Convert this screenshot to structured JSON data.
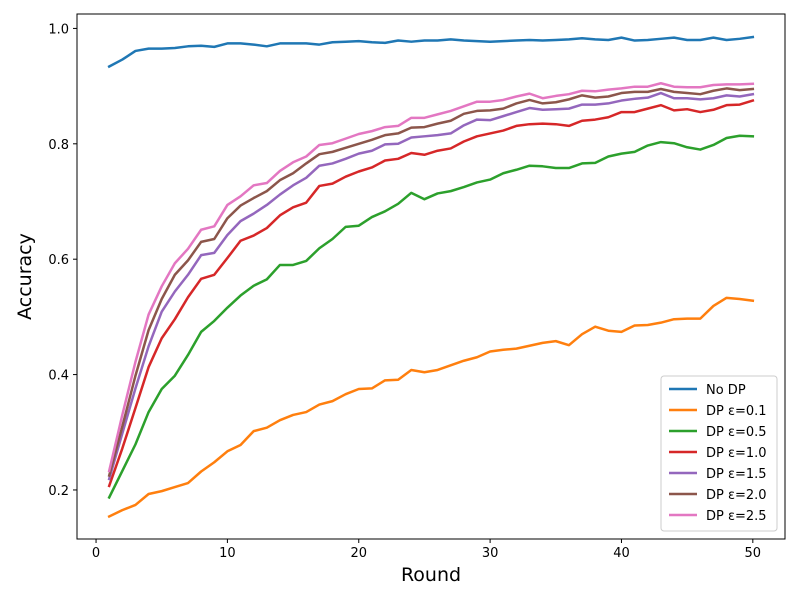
{
  "chart_data": {
    "type": "line",
    "title": "",
    "xlabel": "Round",
    "ylabel": "Accuracy",
    "xlim": [
      -1.45,
      52.45
    ],
    "ylim": [
      0.115,
      1.025
    ],
    "xticks": [
      0,
      10,
      20,
      30,
      40,
      50
    ],
    "yticks": [
      0.2,
      0.4,
      0.6,
      0.8,
      1.0
    ],
    "xtick_labels": [
      "0",
      "10",
      "20",
      "30",
      "40",
      "50"
    ],
    "ytick_labels": [
      "0.2",
      "0.4",
      "0.6",
      "0.8",
      "1.0"
    ],
    "grid": false,
    "legend": "bottom-right",
    "x": [
      1,
      2,
      3,
      4,
      5,
      6,
      7,
      8,
      9,
      10,
      11,
      12,
      13,
      14,
      15,
      16,
      17,
      18,
      19,
      20,
      21,
      22,
      23,
      24,
      25,
      26,
      27,
      28,
      29,
      30,
      31,
      32,
      33,
      34,
      35,
      36,
      37,
      38,
      39,
      40,
      41,
      42,
      43,
      44,
      45,
      46,
      47,
      48,
      49,
      50
    ],
    "series": [
      {
        "name": "No DP",
        "color": "#1f77b4",
        "values": [
          0.934,
          0.946,
          0.961,
          0.965,
          0.965,
          0.966,
          0.969,
          0.97,
          0.968,
          0.974,
          0.974,
          0.972,
          0.969,
          0.974,
          0.974,
          0.974,
          0.972,
          0.976,
          0.977,
          0.978,
          0.976,
          0.975,
          0.979,
          0.977,
          0.979,
          0.979,
          0.981,
          0.979,
          0.978,
          0.977,
          0.978,
          0.979,
          0.98,
          0.979,
          0.98,
          0.981,
          0.983,
          0.981,
          0.98,
          0.984,
          0.979,
          0.98,
          0.982,
          0.984,
          0.98,
          0.98,
          0.984,
          0.98,
          0.982,
          0.985
        ]
      },
      {
        "name": "DP ε=0.1",
        "color": "#ff7f0e",
        "values": [
          0.154,
          0.165,
          0.174,
          0.193,
          0.198,
          0.205,
          0.212,
          0.232,
          0.248,
          0.267,
          0.278,
          0.302,
          0.308,
          0.321,
          0.33,
          0.335,
          0.348,
          0.354,
          0.366,
          0.375,
          0.376,
          0.39,
          0.391,
          0.408,
          0.404,
          0.408,
          0.416,
          0.424,
          0.43,
          0.44,
          0.443,
          0.445,
          0.45,
          0.455,
          0.458,
          0.451,
          0.47,
          0.483,
          0.476,
          0.474,
          0.485,
          0.486,
          0.49,
          0.496,
          0.497,
          0.497,
          0.519,
          0.533,
          0.531,
          0.528
        ]
      },
      {
        "name": "DP ε=0.5",
        "color": "#2ca02c",
        "values": [
          0.187,
          0.233,
          0.279,
          0.335,
          0.375,
          0.398,
          0.434,
          0.474,
          0.493,
          0.516,
          0.537,
          0.554,
          0.565,
          0.59,
          0.59,
          0.597,
          0.619,
          0.635,
          0.656,
          0.658,
          0.673,
          0.683,
          0.696,
          0.715,
          0.704,
          0.714,
          0.718,
          0.725,
          0.733,
          0.738,
          0.749,
          0.755,
          0.762,
          0.761,
          0.758,
          0.758,
          0.766,
          0.767,
          0.778,
          0.783,
          0.786,
          0.797,
          0.803,
          0.801,
          0.794,
          0.79,
          0.798,
          0.81,
          0.814,
          0.813
        ]
      },
      {
        "name": "DP ε=1.0",
        "color": "#d62728",
        "values": [
          0.207,
          0.272,
          0.342,
          0.413,
          0.463,
          0.496,
          0.534,
          0.566,
          0.573,
          0.602,
          0.632,
          0.641,
          0.654,
          0.676,
          0.69,
          0.698,
          0.727,
          0.731,
          0.743,
          0.752,
          0.759,
          0.771,
          0.774,
          0.784,
          0.781,
          0.788,
          0.792,
          0.804,
          0.813,
          0.818,
          0.823,
          0.831,
          0.834,
          0.835,
          0.834,
          0.831,
          0.84,
          0.842,
          0.846,
          0.855,
          0.855,
          0.861,
          0.867,
          0.858,
          0.86,
          0.855,
          0.859,
          0.867,
          0.868,
          0.875
        ]
      },
      {
        "name": "DP ε=1.5",
        "color": "#9467bd",
        "values": [
          0.219,
          0.298,
          0.376,
          0.449,
          0.509,
          0.544,
          0.573,
          0.607,
          0.611,
          0.642,
          0.666,
          0.679,
          0.694,
          0.712,
          0.728,
          0.741,
          0.762,
          0.766,
          0.774,
          0.783,
          0.788,
          0.799,
          0.8,
          0.811,
          0.813,
          0.815,
          0.818,
          0.832,
          0.842,
          0.841,
          0.848,
          0.855,
          0.862,
          0.859,
          0.86,
          0.861,
          0.868,
          0.868,
          0.87,
          0.875,
          0.878,
          0.88,
          0.888,
          0.879,
          0.879,
          0.877,
          0.879,
          0.884,
          0.882,
          0.886
        ]
      },
      {
        "name": "DP ε=2.0",
        "color": "#8c564b",
        "values": [
          0.225,
          0.31,
          0.398,
          0.477,
          0.531,
          0.573,
          0.598,
          0.63,
          0.635,
          0.671,
          0.693,
          0.706,
          0.718,
          0.737,
          0.749,
          0.766,
          0.782,
          0.786,
          0.793,
          0.8,
          0.807,
          0.815,
          0.818,
          0.828,
          0.829,
          0.835,
          0.84,
          0.852,
          0.857,
          0.858,
          0.861,
          0.87,
          0.876,
          0.87,
          0.872,
          0.877,
          0.884,
          0.88,
          0.882,
          0.888,
          0.89,
          0.89,
          0.895,
          0.89,
          0.888,
          0.886,
          0.892,
          0.896,
          0.893,
          0.895
        ]
      },
      {
        "name": "DP ε=2.5",
        "color": "#e377c2",
        "values": [
          0.233,
          0.33,
          0.422,
          0.504,
          0.553,
          0.593,
          0.618,
          0.651,
          0.657,
          0.694,
          0.709,
          0.728,
          0.732,
          0.753,
          0.768,
          0.778,
          0.798,
          0.801,
          0.809,
          0.817,
          0.822,
          0.829,
          0.831,
          0.845,
          0.845,
          0.851,
          0.857,
          0.865,
          0.873,
          0.873,
          0.876,
          0.882,
          0.887,
          0.879,
          0.883,
          0.886,
          0.892,
          0.891,
          0.894,
          0.896,
          0.899,
          0.899,
          0.905,
          0.899,
          0.898,
          0.898,
          0.902,
          0.903,
          0.903,
          0.904
        ]
      }
    ]
  }
}
